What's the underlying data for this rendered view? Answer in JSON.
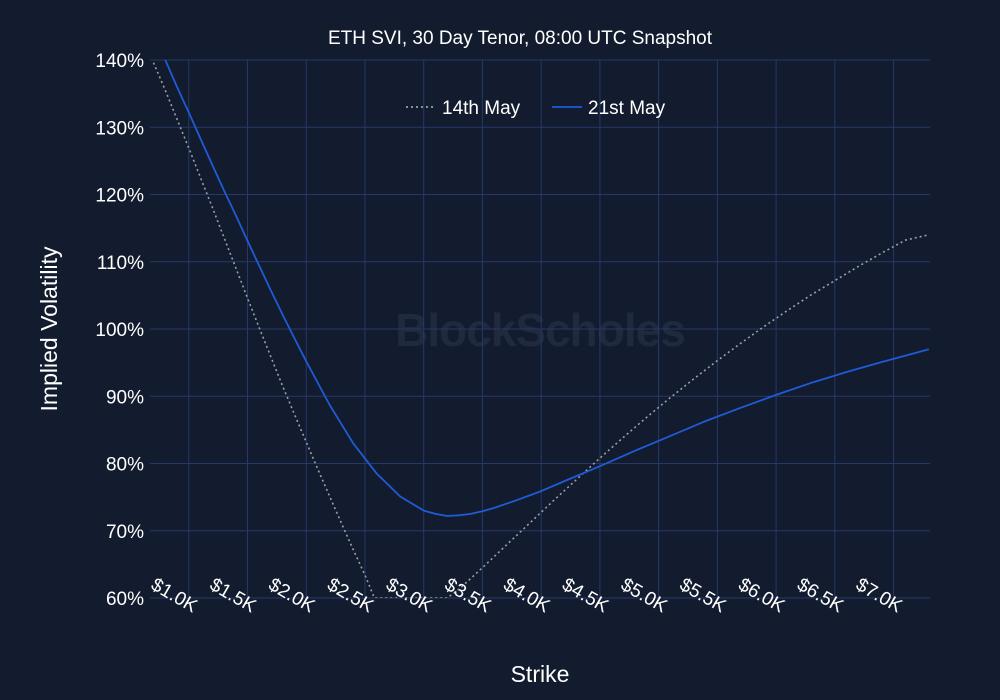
{
  "chart_data": {
    "type": "line",
    "title": "ETH SVI, 30 Day Tenor, 08:00 UTC Snapshot",
    "xlabel": "Strike",
    "ylabel": "Implied Volatility",
    "watermark": "BlockScholes",
    "xlim": [
      670,
      7310
    ],
    "ylim": [
      60,
      140
    ],
    "x_ticks": [
      1000,
      1500,
      2000,
      2500,
      3000,
      3500,
      4000,
      4500,
      5000,
      5500,
      6000,
      6500,
      7000
    ],
    "x_tick_labels": [
      "$1.0K",
      "$1.5K",
      "$2.0K",
      "$2.5K",
      "$3.0K",
      "$3.5K",
      "$4.0K",
      "$4.5K",
      "$5.0K",
      "$5.5K",
      "$6.0K",
      "$6.5K",
      "$7.0K"
    ],
    "y_ticks": [
      60,
      70,
      80,
      90,
      100,
      110,
      120,
      130,
      140
    ],
    "y_tick_labels": [
      "60%",
      "70%",
      "80%",
      "90%",
      "100%",
      "110%",
      "120%",
      "130%",
      "140%"
    ],
    "grid": true,
    "legend_position": "top-center",
    "series": [
      {
        "name": "14th May",
        "color": "#9aa0a8",
        "dash": "dotted",
        "x": [
          700,
          800,
          900,
          1000,
          1100,
          1200,
          1300,
          1400,
          1500,
          1600,
          1700,
          1800,
          1900,
          2000,
          2100,
          2200,
          2300,
          2400,
          2500,
          2580,
          3200,
          3300,
          3400,
          3500,
          3700,
          3900,
          4100,
          4300,
          4500,
          4700,
          4900,
          5100,
          5300,
          5500,
          5700,
          5900,
          6100,
          6300,
          6500,
          6700,
          6900,
          7100,
          7300
        ],
        "y": [
          139.6,
          135.5,
          131.2,
          126.9,
          122.5,
          118.1,
          113.6,
          109.1,
          104.6,
          100.2,
          95.8,
          91.5,
          87.3,
          83.2,
          79.1,
          75.1,
          71.1,
          67.2,
          63.4,
          60.0,
          60.0,
          61.3,
          62.9,
          64.5,
          67.8,
          71.1,
          74.4,
          77.6,
          80.8,
          83.9,
          86.9,
          89.8,
          92.6,
          95.3,
          97.9,
          100.4,
          102.8,
          105.1,
          107.2,
          109.3,
          111.3,
          113.2,
          114.0
        ]
      },
      {
        "name": "21st May",
        "color": "#1f5bd6",
        "dash": "solid",
        "x": [
          800,
          900,
          1000,
          1100,
          1200,
          1300,
          1400,
          1500,
          1600,
          1700,
          1800,
          1900,
          2000,
          2200,
          2400,
          2600,
          2800,
          3000,
          3100,
          3200,
          3300,
          3400,
          3500,
          3600,
          3800,
          4000,
          4200,
          4500,
          4800,
          5100,
          5400,
          5700,
          6000,
          6300,
          6600,
          6900,
          7200,
          7300
        ],
        "y": [
          140.0,
          136.0,
          132.2,
          128.3,
          124.4,
          120.6,
          116.9,
          113.1,
          109.4,
          105.7,
          102.1,
          98.6,
          95.2,
          88.7,
          83.0,
          78.5,
          75.1,
          73.0,
          72.5,
          72.2,
          72.3,
          72.5,
          72.9,
          73.4,
          74.6,
          75.9,
          77.4,
          79.6,
          81.9,
          84.1,
          86.3,
          88.3,
          90.2,
          92.0,
          93.6,
          95.1,
          96.5,
          97.0
        ]
      }
    ]
  }
}
